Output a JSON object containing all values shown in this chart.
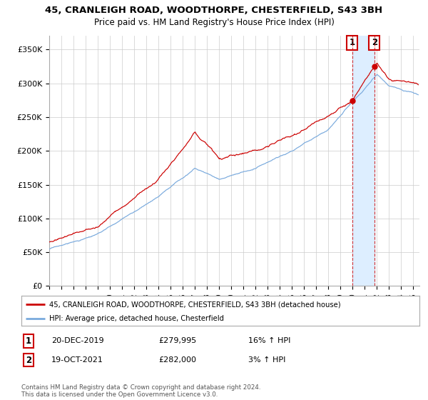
{
  "title_line1": "45, CRANLEIGH ROAD, WOODTHORPE, CHESTERFIELD, S43 3BH",
  "title_line2": "Price paid vs. HM Land Registry's House Price Index (HPI)",
  "ylabel_ticks": [
    "£0",
    "£50K",
    "£100K",
    "£150K",
    "£200K",
    "£250K",
    "£300K",
    "£350K"
  ],
  "ytick_values": [
    0,
    50000,
    100000,
    150000,
    200000,
    250000,
    300000,
    350000
  ],
  "ylim": [
    0,
    370000
  ],
  "xlim_start": 1995.0,
  "xlim_end": 2025.5,
  "hpi_color": "#7aaadd",
  "price_color": "#cc0000",
  "shade_color": "#ddeeff",
  "marker1_year": 2019.96,
  "marker1_value": 279995,
  "marker1_label": "1",
  "marker1_date": "20-DEC-2019",
  "marker1_price": "£279,995",
  "marker1_hpi": "16% ↑ HPI",
  "marker2_year": 2021.79,
  "marker2_value": 282000,
  "marker2_label": "2",
  "marker2_date": "19-OCT-2021",
  "marker2_price": "£282,000",
  "marker2_hpi": "3% ↑ HPI",
  "legend_line1": "45, CRANLEIGH ROAD, WOODTHORPE, CHESTERFIELD, S43 3BH (detached house)",
  "legend_line2": "HPI: Average price, detached house, Chesterfield",
  "footnote": "Contains HM Land Registry data © Crown copyright and database right 2024.\nThis data is licensed under the Open Government Licence v3.0.",
  "background_color": "#ffffff",
  "grid_color": "#cccccc"
}
